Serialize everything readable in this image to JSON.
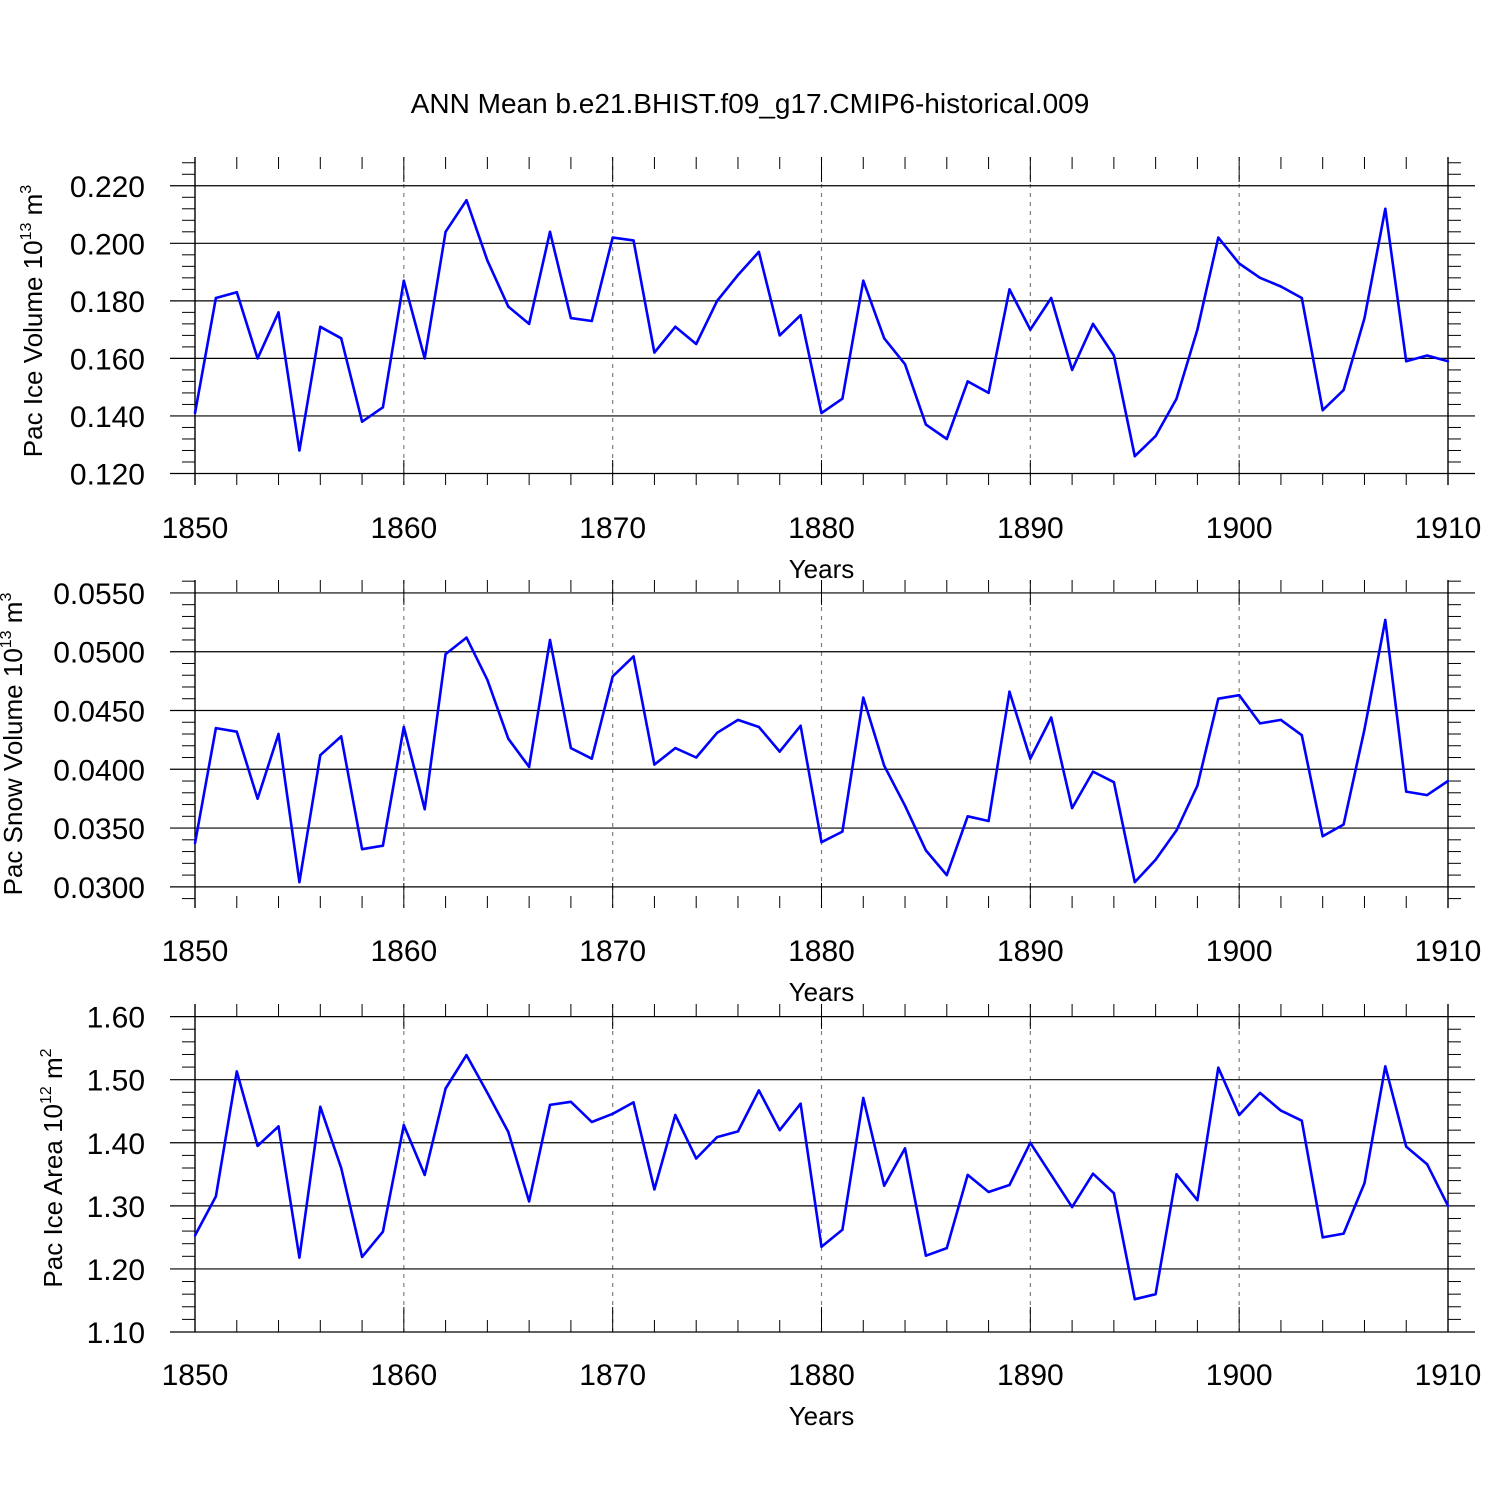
{
  "title": "ANN Mean b.e21.BHIST.f09_g17.CMIP6-historical.009",
  "colors": {
    "series": "#0000ff",
    "axes": "#000000",
    "grid": "#808080"
  },
  "chart_data": [
    {
      "type": "line",
      "ylabel": "Pac Ice Volume 10",
      "ylabel_sup": "13",
      "ylabel_unit": " m",
      "ylabel_unit_sup": "3",
      "xlabel": "Years",
      "xlim": [
        1850,
        1910
      ],
      "ylim": [
        0.116,
        0.23
      ],
      "yticks": [
        0.12,
        0.14,
        0.16,
        0.18,
        0.2,
        0.22
      ],
      "ytick_labels": [
        "0.120",
        "0.140",
        "0.160",
        "0.180",
        "0.200",
        "0.220"
      ],
      "yminor_step": 0.004,
      "xticks": [
        1850,
        1860,
        1870,
        1880,
        1890,
        1900,
        1910
      ],
      "xtick_labels": [
        "1850",
        "1860",
        "1870",
        "1880",
        "1890",
        "1900",
        "1910"
      ],
      "grid_x": [
        1860,
        1870,
        1880,
        1890,
        1900
      ],
      "x": [
        1850,
        1851,
        1852,
        1853,
        1854,
        1855,
        1856,
        1857,
        1858,
        1859,
        1860,
        1861,
        1862,
        1863,
        1864,
        1865,
        1866,
        1867,
        1868,
        1869,
        1870,
        1871,
        1872,
        1873,
        1874,
        1875,
        1876,
        1877,
        1878,
        1879,
        1880,
        1881,
        1882,
        1883,
        1884,
        1885,
        1886,
        1887,
        1888,
        1889,
        1890,
        1891,
        1892,
        1893,
        1894,
        1895,
        1896,
        1897,
        1898,
        1899,
        1900,
        1901,
        1902,
        1903,
        1904,
        1905,
        1906,
        1907,
        1908,
        1909,
        1910
      ],
      "values": [
        0.141,
        0.181,
        0.183,
        0.16,
        0.176,
        0.128,
        0.171,
        0.167,
        0.138,
        0.143,
        0.187,
        0.16,
        0.204,
        0.215,
        0.194,
        0.178,
        0.172,
        0.204,
        0.174,
        0.173,
        0.202,
        0.201,
        0.162,
        0.171,
        0.165,
        0.18,
        0.189,
        0.197,
        0.168,
        0.175,
        0.141,
        0.146,
        0.187,
        0.167,
        0.158,
        0.137,
        0.132,
        0.152,
        0.148,
        0.184,
        0.17,
        0.181,
        0.156,
        0.172,
        0.161,
        0.126,
        0.133,
        0.146,
        0.17,
        0.202,
        0.193,
        0.188,
        0.185,
        0.181,
        0.142,
        0.149,
        0.174,
        0.212,
        0.159,
        0.161,
        0.159
      ]
    },
    {
      "type": "line",
      "ylabel": "Pac Snow Volume 10",
      "ylabel_sup": "13",
      "ylabel_unit": " m",
      "ylabel_unit_sup": "3",
      "xlabel": "Years",
      "xlim": [
        1850,
        1910
      ],
      "ylim": [
        0.0282,
        0.0561
      ],
      "yticks": [
        0.03,
        0.035,
        0.04,
        0.045,
        0.05,
        0.055
      ],
      "ytick_labels": [
        "0.0300",
        "0.0350",
        "0.0400",
        "0.0450",
        "0.0500",
        "0.0550"
      ],
      "yminor_step": 0.001,
      "xticks": [
        1850,
        1860,
        1870,
        1880,
        1890,
        1900,
        1910
      ],
      "xtick_labels": [
        "1850",
        "1860",
        "1870",
        "1880",
        "1890",
        "1900",
        "1910"
      ],
      "grid_x": [
        1860,
        1870,
        1880,
        1890,
        1900
      ],
      "x": [
        1850,
        1851,
        1852,
        1853,
        1854,
        1855,
        1856,
        1857,
        1858,
        1859,
        1860,
        1861,
        1862,
        1863,
        1864,
        1865,
        1866,
        1867,
        1868,
        1869,
        1870,
        1871,
        1872,
        1873,
        1874,
        1875,
        1876,
        1877,
        1878,
        1879,
        1880,
        1881,
        1882,
        1883,
        1884,
        1885,
        1886,
        1887,
        1888,
        1889,
        1890,
        1891,
        1892,
        1893,
        1894,
        1895,
        1896,
        1897,
        1898,
        1899,
        1900,
        1901,
        1902,
        1903,
        1904,
        1905,
        1906,
        1907,
        1908,
        1909,
        1910
      ],
      "values": [
        0.0337,
        0.0435,
        0.0432,
        0.0375,
        0.043,
        0.0304,
        0.0412,
        0.0428,
        0.0332,
        0.0335,
        0.0436,
        0.0366,
        0.0498,
        0.0512,
        0.0476,
        0.0426,
        0.0402,
        0.051,
        0.0418,
        0.0409,
        0.0479,
        0.0496,
        0.0404,
        0.0418,
        0.041,
        0.0431,
        0.0442,
        0.0436,
        0.0415,
        0.0437,
        0.0338,
        0.0347,
        0.0461,
        0.0403,
        0.0369,
        0.0331,
        0.031,
        0.036,
        0.0356,
        0.0466,
        0.0409,
        0.0444,
        0.0367,
        0.0398,
        0.0389,
        0.0304,
        0.0323,
        0.0348,
        0.0386,
        0.046,
        0.0463,
        0.0439,
        0.0442,
        0.0429,
        0.0343,
        0.0353,
        0.0434,
        0.0527,
        0.0381,
        0.0378,
        0.039
      ]
    },
    {
      "type": "line",
      "ylabel": "Pac Ice Area 10",
      "ylabel_sup": "12",
      "ylabel_unit": " m",
      "ylabel_unit_sup": "2",
      "xlabel": "Years",
      "xlim": [
        1850,
        1910
      ],
      "ylim": [
        1.1,
        1.62
      ],
      "yticks": [
        1.1,
        1.2,
        1.3,
        1.4,
        1.5,
        1.6
      ],
      "ytick_labels": [
        "1.10",
        "1.20",
        "1.30",
        "1.40",
        "1.50",
        "1.60"
      ],
      "yminor_step": 0.02,
      "xticks": [
        1850,
        1860,
        1870,
        1880,
        1890,
        1900,
        1910
      ],
      "xtick_labels": [
        "1850",
        "1860",
        "1870",
        "1880",
        "1890",
        "1900",
        "1910"
      ],
      "grid_x": [
        1860,
        1870,
        1880,
        1890,
        1900
      ],
      "x": [
        1850,
        1851,
        1852,
        1853,
        1854,
        1855,
        1856,
        1857,
        1858,
        1859,
        1860,
        1861,
        1862,
        1863,
        1864,
        1865,
        1866,
        1867,
        1868,
        1869,
        1870,
        1871,
        1872,
        1873,
        1874,
        1875,
        1876,
        1877,
        1878,
        1879,
        1880,
        1881,
        1882,
        1883,
        1884,
        1885,
        1886,
        1887,
        1888,
        1889,
        1890,
        1891,
        1892,
        1893,
        1894,
        1895,
        1896,
        1897,
        1898,
        1899,
        1900,
        1901,
        1902,
        1903,
        1904,
        1905,
        1906,
        1907,
        1908,
        1909,
        1910
      ],
      "values": [
        1.253,
        1.315,
        1.513,
        1.395,
        1.426,
        1.218,
        1.457,
        1.36,
        1.219,
        1.259,
        1.428,
        1.349,
        1.486,
        1.539,
        1.479,
        1.417,
        1.307,
        1.46,
        1.465,
        1.433,
        1.446,
        1.464,
        1.326,
        1.444,
        1.375,
        1.409,
        1.418,
        1.483,
        1.42,
        1.462,
        1.235,
        1.262,
        1.471,
        1.332,
        1.391,
        1.221,
        1.233,
        1.349,
        1.322,
        1.333,
        1.4,
        1.349,
        1.298,
        1.351,
        1.32,
        1.152,
        1.16,
        1.35,
        1.309,
        1.519,
        1.444,
        1.479,
        1.451,
        1.435,
        1.25,
        1.256,
        1.336,
        1.521,
        1.394,
        1.366,
        1.3
      ]
    }
  ]
}
